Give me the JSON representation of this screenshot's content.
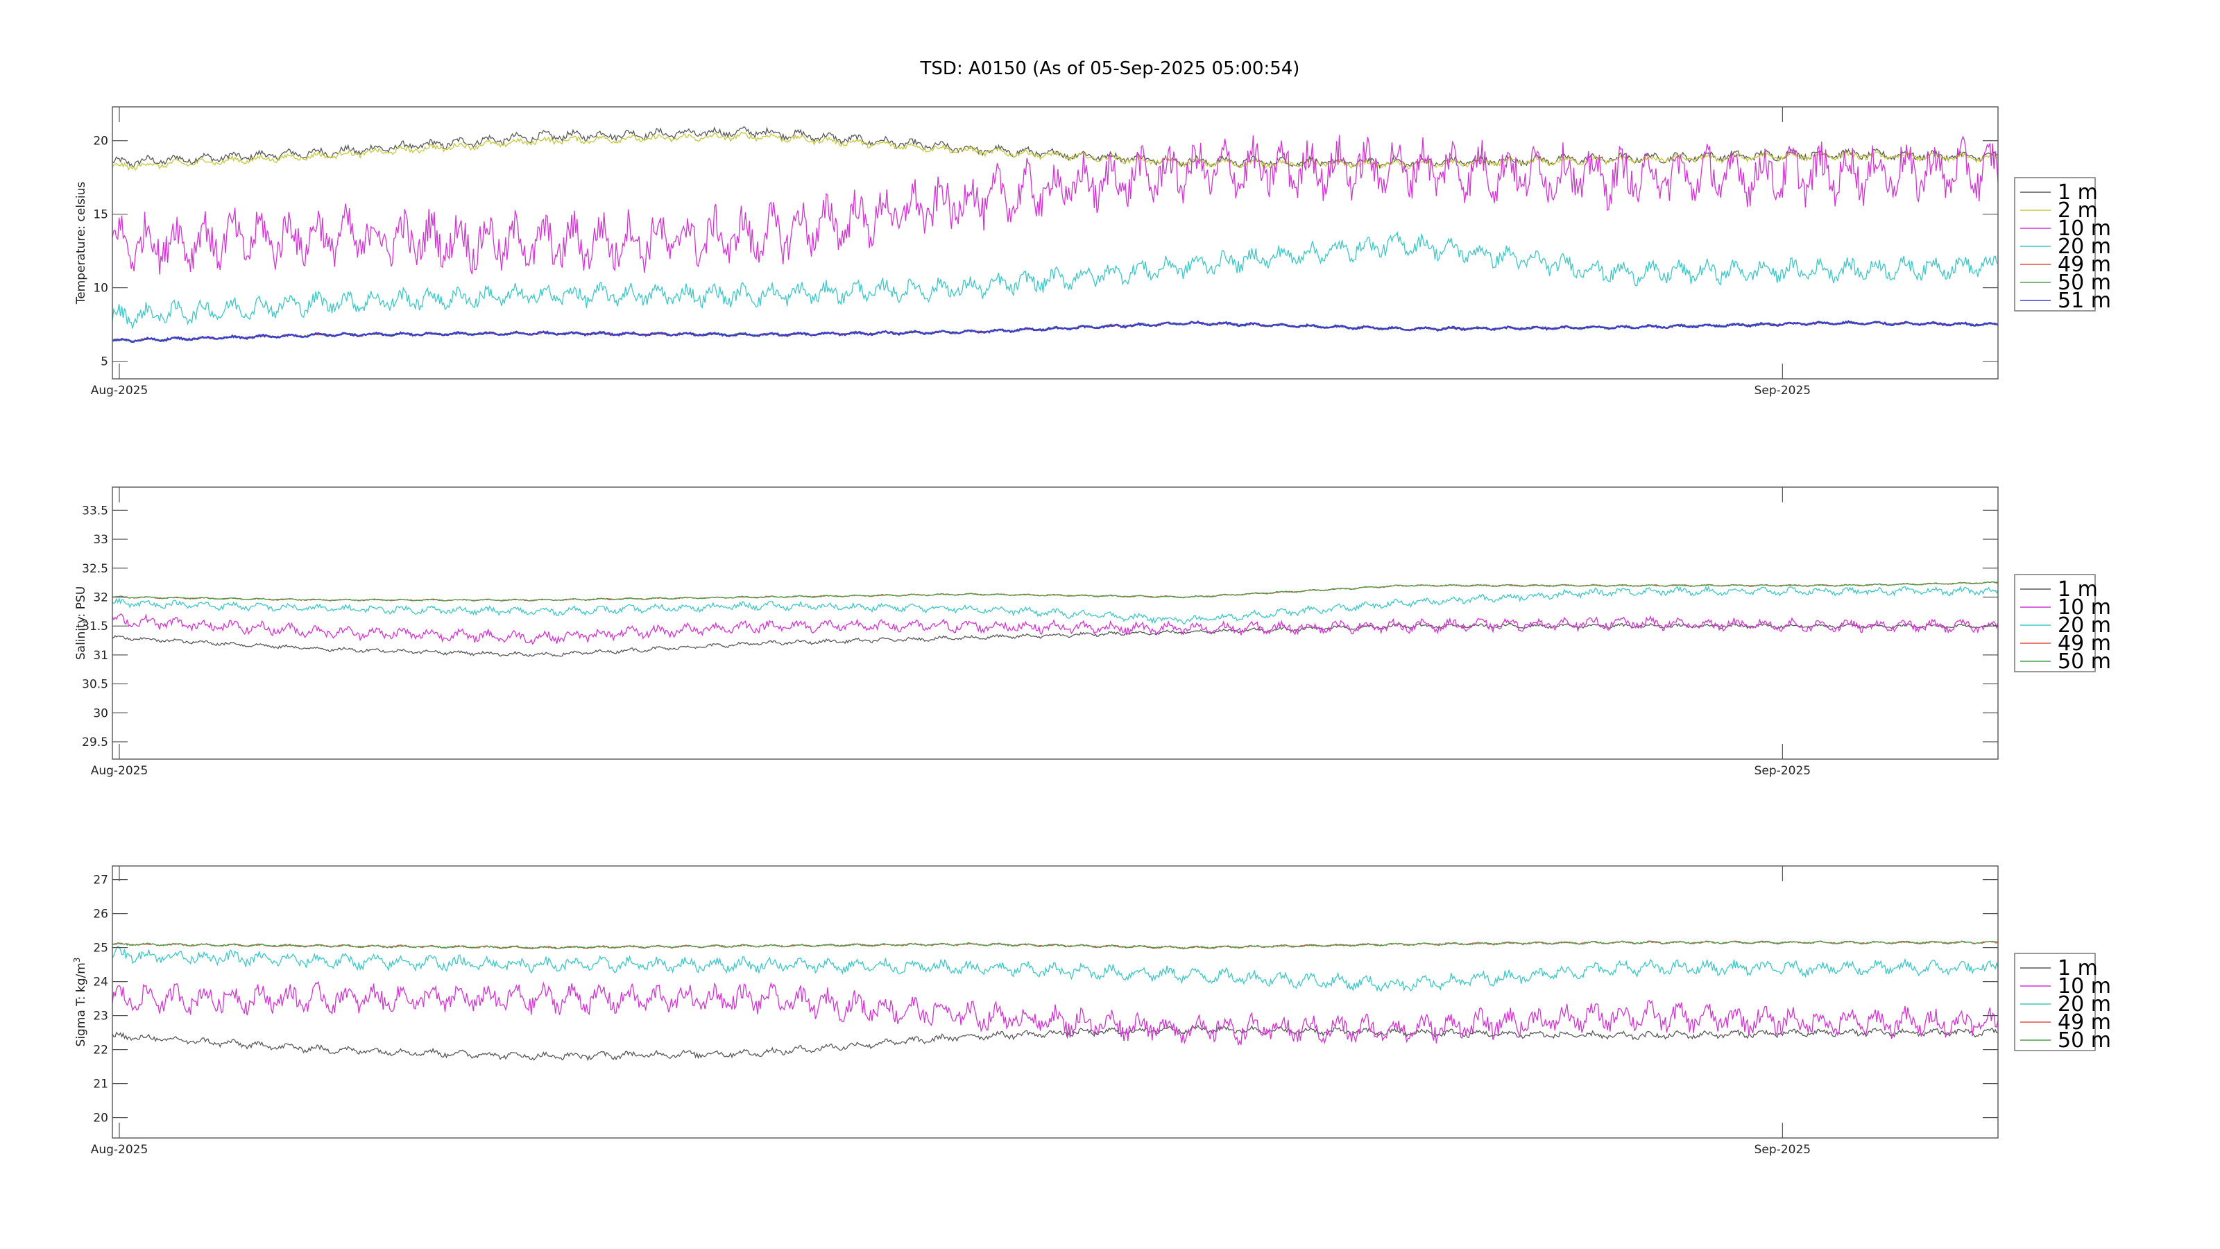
{
  "title": "TSD: A0150 (As of 05-Sep-2025 05:00:54)",
  "colors": {
    "1 m": "#595959",
    "2 m": "#c8c83c",
    "10 m": "#d633d6",
    "20 m": "#3cc8c8",
    "49 m": "#e05040",
    "50 m": "#4aa04a",
    "51 m": "#3c3ccf"
  },
  "chart_data": [
    {
      "type": "line",
      "ylabel": "Temperature:  celsius",
      "ylim": [
        3.8,
        22.3
      ],
      "yticks": [
        5,
        10,
        15,
        20
      ],
      "ytick_labels": [
        "5",
        "10",
        "15",
        "20"
      ],
      "xlim": [
        "2025-08-01",
        "2025-09-05"
      ],
      "xticks": [
        "Aug-2025",
        "Sep-2025"
      ],
      "legend": [
        "1 m",
        "2 m",
        "10 m",
        "20 m",
        "49 m",
        "50 m",
        "51 m"
      ],
      "legend_position": "outside-right",
      "series": [
        {
          "name": "1 m",
          "x": [
            "2025-08-01",
            "2025-08-05",
            "2025-08-09",
            "2025-08-13",
            "2025-08-17",
            "2025-08-21",
            "2025-08-25",
            "2025-08-29",
            "2025-09-02",
            "2025-09-05"
          ],
          "values": [
            18.5,
            19.2,
            20.3,
            20.6,
            19.4,
            18.6,
            18.5,
            18.8,
            19.1,
            18.9
          ]
        },
        {
          "name": "2 m",
          "x": [
            "2025-08-01",
            "2025-08-05",
            "2025-08-09",
            "2025-08-13",
            "2025-08-17",
            "2025-08-21",
            "2025-08-25",
            "2025-08-29",
            "2025-09-02",
            "2025-09-05"
          ],
          "values": [
            18.2,
            19.0,
            20.0,
            20.3,
            19.3,
            18.5,
            18.4,
            18.7,
            19.0,
            18.8
          ]
        },
        {
          "name": "10 m",
          "x": [
            "2025-08-01",
            "2025-08-05",
            "2025-08-09",
            "2025-08-13",
            "2025-08-17",
            "2025-08-21",
            "2025-08-25",
            "2025-08-29",
            "2025-09-02",
            "2025-09-05"
          ],
          "values": [
            13.0,
            13.5,
            13.0,
            13.5,
            16.0,
            18.0,
            18.2,
            17.5,
            17.8,
            18.0
          ]
        },
        {
          "name": "20 m",
          "x": [
            "2025-08-01",
            "2025-08-05",
            "2025-08-09",
            "2025-08-13",
            "2025-08-17",
            "2025-08-21",
            "2025-08-25",
            "2025-08-29",
            "2025-09-02",
            "2025-09-05"
          ],
          "values": [
            8.0,
            9.0,
            9.5,
            9.5,
            10.0,
            11.5,
            13.0,
            11.0,
            11.2,
            11.5
          ]
        },
        {
          "name": "49 m",
          "x": [
            "2025-08-01",
            "2025-08-05",
            "2025-08-09",
            "2025-08-13",
            "2025-08-17",
            "2025-08-21",
            "2025-08-25",
            "2025-08-29",
            "2025-09-02",
            "2025-09-05"
          ],
          "values": [
            6.4,
            6.8,
            6.9,
            6.8,
            7.0,
            7.6,
            7.2,
            7.3,
            7.6,
            7.5
          ]
        },
        {
          "name": "50 m",
          "x": [
            "2025-08-01",
            "2025-08-05",
            "2025-08-09",
            "2025-08-13",
            "2025-08-17",
            "2025-08-21",
            "2025-08-25",
            "2025-08-29",
            "2025-09-02",
            "2025-09-05"
          ],
          "values": [
            6.4,
            6.8,
            6.9,
            6.8,
            7.0,
            7.6,
            7.2,
            7.3,
            7.6,
            7.5
          ]
        },
        {
          "name": "51 m",
          "x": [
            "2025-08-01",
            "2025-08-05",
            "2025-08-09",
            "2025-08-13",
            "2025-08-17",
            "2025-08-21",
            "2025-08-25",
            "2025-08-29",
            "2025-09-02",
            "2025-09-05"
          ],
          "values": [
            6.4,
            6.8,
            6.9,
            6.8,
            7.0,
            7.6,
            7.2,
            7.3,
            7.6,
            7.5
          ]
        }
      ]
    },
    {
      "type": "line",
      "ylabel": "Salinity:  PSU",
      "ylim": [
        29.2,
        33.9
      ],
      "yticks": [
        29.5,
        30,
        30.5,
        31,
        31.5,
        32,
        32.5,
        33,
        33.5
      ],
      "ytick_labels": [
        "29.5",
        "30",
        "30.5",
        "31",
        "31.5",
        "32",
        "32.5",
        "33",
        "33.5"
      ],
      "xlim": [
        "2025-08-01",
        "2025-09-05"
      ],
      "xticks": [
        "Aug-2025",
        "Sep-2025"
      ],
      "legend": [
        "1 m",
        "10 m",
        "20 m",
        "49 m",
        "50 m"
      ],
      "legend_position": "outside-right",
      "series": [
        {
          "name": "1 m",
          "x": [
            "2025-08-01",
            "2025-08-05",
            "2025-08-09",
            "2025-08-13",
            "2025-08-17",
            "2025-08-21",
            "2025-08-25",
            "2025-08-29",
            "2025-09-02",
            "2025-09-05"
          ],
          "values": [
            31.3,
            31.1,
            31.0,
            31.2,
            31.3,
            31.4,
            31.5,
            31.5,
            31.5,
            31.5
          ]
        },
        {
          "name": "10 m",
          "x": [
            "2025-08-01",
            "2025-08-05",
            "2025-08-09",
            "2025-08-13",
            "2025-08-17",
            "2025-08-21",
            "2025-08-25",
            "2025-08-29",
            "2025-09-02",
            "2025-09-05"
          ],
          "values": [
            31.6,
            31.4,
            31.3,
            31.5,
            31.5,
            31.45,
            31.5,
            31.55,
            31.5,
            31.5
          ]
        },
        {
          "name": "20 m",
          "x": [
            "2025-08-01",
            "2025-08-05",
            "2025-08-09",
            "2025-08-13",
            "2025-08-17",
            "2025-08-21",
            "2025-08-25",
            "2025-08-29",
            "2025-09-02",
            "2025-09-05"
          ],
          "values": [
            31.9,
            31.8,
            31.75,
            31.85,
            31.8,
            31.6,
            31.9,
            32.1,
            32.1,
            32.1
          ]
        },
        {
          "name": "49 m",
          "x": [
            "2025-08-01",
            "2025-08-05",
            "2025-08-09",
            "2025-08-13",
            "2025-08-17",
            "2025-08-21",
            "2025-08-25",
            "2025-08-29",
            "2025-09-02",
            "2025-09-05"
          ],
          "values": [
            32.0,
            31.95,
            31.95,
            32.0,
            32.05,
            32.0,
            32.2,
            32.2,
            32.2,
            32.25
          ]
        },
        {
          "name": "50 m",
          "x": [
            "2025-08-01",
            "2025-08-05",
            "2025-08-09",
            "2025-08-13",
            "2025-08-17",
            "2025-08-21",
            "2025-08-25",
            "2025-08-29",
            "2025-09-02",
            "2025-09-05"
          ],
          "values": [
            32.0,
            31.95,
            31.95,
            32.0,
            32.05,
            32.0,
            32.2,
            32.2,
            32.2,
            32.25
          ]
        }
      ]
    },
    {
      "type": "line",
      "ylabel": "Sigma T:  kg/m",
      "ylabel_superscript": "3",
      "ylim": [
        19.4,
        27.4
      ],
      "yticks": [
        20,
        21,
        22,
        23,
        24,
        25,
        26,
        27
      ],
      "ytick_labels": [
        "20",
        "21",
        "22",
        "23",
        "24",
        "25",
        "26",
        "27"
      ],
      "xlim": [
        "2025-08-01",
        "2025-09-05"
      ],
      "xticks": [
        "Aug-2025",
        "Sep-2025"
      ],
      "legend": [
        "1 m",
        "10 m",
        "20 m",
        "49 m",
        "50 m"
      ],
      "legend_position": "outside-right",
      "series": [
        {
          "name": "1 m",
          "x": [
            "2025-08-01",
            "2025-08-05",
            "2025-08-09",
            "2025-08-13",
            "2025-08-17",
            "2025-08-21",
            "2025-08-25",
            "2025-08-29",
            "2025-09-02",
            "2025-09-05"
          ],
          "values": [
            22.4,
            22.0,
            21.8,
            21.9,
            22.4,
            22.6,
            22.5,
            22.4,
            22.5,
            22.5
          ]
        },
        {
          "name": "10 m",
          "x": [
            "2025-08-01",
            "2025-08-05",
            "2025-08-09",
            "2025-08-13",
            "2025-08-17",
            "2025-08-21",
            "2025-08-25",
            "2025-08-29",
            "2025-09-02",
            "2025-09-05"
          ],
          "values": [
            23.5,
            23.5,
            23.5,
            23.5,
            23.0,
            22.6,
            22.6,
            23.0,
            22.8,
            22.8
          ]
        },
        {
          "name": "20 m",
          "x": [
            "2025-08-01",
            "2025-08-05",
            "2025-08-09",
            "2025-08-13",
            "2025-08-17",
            "2025-08-21",
            "2025-08-25",
            "2025-08-29",
            "2025-09-02",
            "2025-09-05"
          ],
          "values": [
            24.8,
            24.6,
            24.5,
            24.5,
            24.4,
            24.2,
            23.9,
            24.4,
            24.4,
            24.4
          ]
        },
        {
          "name": "49 m",
          "x": [
            "2025-08-01",
            "2025-08-05",
            "2025-08-09",
            "2025-08-13",
            "2025-08-17",
            "2025-08-21",
            "2025-08-25",
            "2025-08-29",
            "2025-09-02",
            "2025-09-05"
          ],
          "values": [
            25.1,
            25.05,
            25.0,
            25.05,
            25.1,
            25.0,
            25.1,
            25.15,
            25.15,
            25.15
          ]
        },
        {
          "name": "50 m",
          "x": [
            "2025-08-01",
            "2025-08-05",
            "2025-08-09",
            "2025-08-13",
            "2025-08-17",
            "2025-08-21",
            "2025-08-25",
            "2025-08-29",
            "2025-09-02",
            "2025-09-05"
          ],
          "values": [
            25.1,
            25.05,
            25.0,
            25.05,
            25.1,
            25.0,
            25.1,
            25.15,
            25.15,
            25.15
          ]
        }
      ]
    }
  ]
}
